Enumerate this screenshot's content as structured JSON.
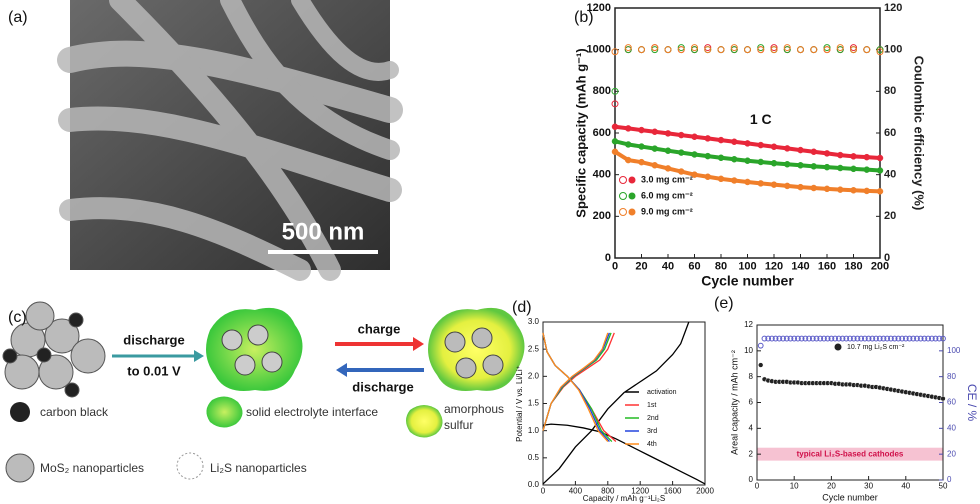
{
  "figure_a": {
    "panel": "(a)",
    "scale_bar": "500 nm"
  },
  "diagram_c": {
    "panel": "(c)",
    "arrow_1": [
      "discharge",
      "to 0.01 V"
    ],
    "arrow_2": "charge",
    "arrow_3": "discharge",
    "legend": [
      "carbon black",
      "solid electrolyte interface",
      "MoS₂ nanoparticles",
      "Li₂S nanoparticles"
    ],
    "legend_sulfur": [
      "amorphous",
      "sulfur"
    ]
  },
  "chart_data": [
    {
      "type": "line",
      "panel": "(b)",
      "xlabel": "Cycle number",
      "ylabel": "Specific capacity (mAh g⁻¹)",
      "y2label": "Coulombic efficiency (%)",
      "x": [
        0,
        10,
        20,
        30,
        40,
        50,
        60,
        70,
        80,
        90,
        100,
        110,
        120,
        130,
        140,
        150,
        160,
        170,
        180,
        190,
        200
      ],
      "xlim": [
        0,
        200
      ],
      "xticks": [
        0,
        20,
        40,
        60,
        80,
        100,
        120,
        140,
        160,
        180,
        200
      ],
      "ylim": [
        0,
        1200
      ],
      "yticks": [
        0,
        200,
        400,
        600,
        800,
        1000,
        1200
      ],
      "y2lim": [
        0,
        120
      ],
      "y2ticks": [
        0,
        20,
        40,
        60,
        80,
        100,
        120
      ],
      "legend": "lower left",
      "annotations": [
        "1 C"
      ],
      "series": [
        {
          "name": "3.0 mg cm⁻²",
          "color": "#e8273a",
          "marker": "filled",
          "values": [
            630,
            622,
            614,
            606,
            598,
            590,
            582,
            574,
            566,
            558,
            550,
            542,
            534,
            526,
            518,
            510,
            502,
            494,
            488,
            484,
            480
          ]
        },
        {
          "name": "6.0 mg cm⁻²",
          "color": "#2aa52a",
          "marker": "filled",
          "values": [
            560,
            545,
            535,
            525,
            515,
            506,
            497,
            489,
            481,
            474,
            467,
            461,
            455,
            450,
            445,
            440,
            436,
            432,
            428,
            424,
            420
          ]
        },
        {
          "name": "9.0 mg cm⁻²",
          "color": "#f07f2a",
          "marker": "filled",
          "values": [
            510,
            470,
            460,
            445,
            430,
            415,
            400,
            390,
            380,
            372,
            365,
            358,
            352,
            346,
            340,
            336,
            332,
            328,
            325,
            322,
            320
          ]
        },
        {
          "color": "#e8273a",
          "marker": "open",
          "line": false,
          "axis": "y2",
          "values": [
            74,
            100,
            100,
            101,
            100,
            100,
            100,
            101,
            100,
            100,
            100,
            100,
            101,
            100,
            100,
            100,
            100,
            100,
            101,
            100,
            100
          ]
        },
        {
          "color": "#2aa52a",
          "marker": "open",
          "line": false,
          "axis": "y2",
          "values": [
            80,
            100,
            100,
            100,
            100,
            101,
            100,
            100,
            100,
            100,
            100,
            101,
            100,
            100,
            100,
            100,
            101,
            100,
            100,
            100,
            100
          ]
        },
        {
          "color": "#f07f2a",
          "marker": "open",
          "line": false,
          "axis": "y2",
          "values": [
            99,
            101,
            100,
            101,
            100,
            100,
            101,
            100,
            100,
            101,
            100,
            100,
            100,
            101,
            100,
            100,
            100,
            101,
            100,
            100,
            99
          ]
        }
      ]
    },
    {
      "type": "line",
      "panel": "(d)",
      "xlabel": "Capacity / mAh g⁻¹Li₂S",
      "ylabel": "Potential / V vs. Li/Li⁺",
      "xlim": [
        0,
        2000
      ],
      "xticks": [
        0,
        400,
        800,
        1200,
        1600,
        2000
      ],
      "ylim": [
        0,
        3
      ],
      "yticks": [
        {
          "value": 0,
          "label": "0.0"
        },
        {
          "value": 0.5,
          "label": "0.5"
        },
        {
          "value": 1,
          "label": "1.0"
        },
        {
          "value": 1.5,
          "label": "1.5"
        },
        {
          "value": 2,
          "label": "2.0"
        },
        {
          "value": 2.5,
          "label": "2.5"
        },
        {
          "value": 3,
          "label": "3.0"
        }
      ],
      "legend": "center right",
      "series": [
        {
          "name": "activation",
          "color": "#000000",
          "x": [
            0,
            100,
            300,
            500,
            700,
            900,
            1100,
            1300,
            1500,
            1700,
            1900,
            2000,
            null,
            0,
            200,
            400,
            600,
            800,
            1000,
            1200,
            1400,
            1600,
            1700,
            1750,
            1800
          ],
          "values": [
            1.1,
            1.12,
            1.1,
            1.05,
            0.98,
            0.85,
            0.7,
            0.55,
            0.4,
            0.25,
            0.1,
            0.02,
            null,
            0.02,
            0.3,
            0.7,
            1.0,
            1.4,
            1.7,
            1.9,
            2.1,
            2.4,
            2.6,
            2.8,
            3.0
          ]
        },
        {
          "name": "1st",
          "color": "#ff3333",
          "x": [
            0,
            50,
            150,
            300,
            450,
            600,
            750,
            900,
            null,
            0,
            100,
            250,
            400,
            550,
            700,
            800,
            880
          ],
          "values": [
            2.8,
            2.45,
            2.2,
            2.0,
            1.75,
            1.4,
            1.0,
            0.8,
            null,
            1.0,
            1.5,
            1.8,
            2.0,
            2.15,
            2.3,
            2.5,
            2.8
          ]
        },
        {
          "name": "2nd",
          "color": "#22bb22",
          "x": [
            0,
            50,
            150,
            300,
            450,
            600,
            720,
            850,
            null,
            0,
            100,
            240,
            380,
            520,
            660,
            760,
            840
          ],
          "values": [
            2.8,
            2.45,
            2.2,
            2.0,
            1.75,
            1.4,
            1.0,
            0.8,
            null,
            1.0,
            1.5,
            1.8,
            2.0,
            2.15,
            2.3,
            2.5,
            2.8
          ]
        },
        {
          "name": "3rd",
          "color": "#2244dd",
          "x": [
            0,
            50,
            150,
            300,
            450,
            580,
            700,
            820,
            null,
            0,
            100,
            230,
            370,
            510,
            640,
            740,
            820
          ],
          "values": [
            2.8,
            2.45,
            2.2,
            2.0,
            1.75,
            1.4,
            1.0,
            0.8,
            null,
            1.0,
            1.5,
            1.8,
            2.0,
            2.15,
            2.3,
            2.5,
            2.8
          ]
        },
        {
          "name": "4th",
          "color": "#ff8c1a",
          "x": [
            0,
            50,
            150,
            300,
            440,
            560,
            680,
            800,
            null,
            0,
            100,
            220,
            360,
            500,
            630,
            730,
            800
          ],
          "values": [
            2.8,
            2.45,
            2.2,
            2.0,
            1.75,
            1.4,
            1.0,
            0.8,
            null,
            1.0,
            1.5,
            1.8,
            2.0,
            2.15,
            2.3,
            2.5,
            2.8
          ]
        }
      ]
    },
    {
      "type": "scatter",
      "panel": "(e)",
      "xlabel": "Cycle number",
      "ylabel": "Areal capacity / mAh cm⁻²",
      "y2label": "CE / %",
      "x": [
        1,
        2,
        3,
        4,
        5,
        6,
        7,
        8,
        9,
        10,
        11,
        12,
        13,
        14,
        15,
        16,
        17,
        18,
        19,
        20,
        21,
        22,
        23,
        24,
        25,
        26,
        27,
        28,
        29,
        30,
        31,
        32,
        33,
        34,
        35,
        36,
        37,
        38,
        39,
        40,
        41,
        42,
        43,
        44,
        45,
        46,
        47,
        48,
        49,
        50
      ],
      "xlim": [
        0,
        50
      ],
      "xticks": [
        0,
        10,
        20,
        30,
        40,
        50
      ],
      "ylim": [
        0,
        12
      ],
      "yticks": [
        0,
        2,
        4,
        6,
        8,
        10,
        12
      ],
      "y2lim": [
        0,
        120
      ],
      "y2ticks": [
        0,
        20,
        40,
        60,
        80,
        100
      ],
      "y2_color": "#4b4bb0",
      "legend": "upper right",
      "band": {
        "range": [
          1.5,
          2.5
        ],
        "label": "typical Li₂S-based cathodes",
        "color": "#f6c2d2"
      },
      "series": [
        {
          "name": "10.7 mg Li₂S cm⁻²",
          "color": "#222222",
          "marker": "filled",
          "values": [
            8.9,
            7.8,
            7.7,
            7.65,
            7.6,
            7.6,
            7.6,
            7.6,
            7.55,
            7.55,
            7.55,
            7.5,
            7.5,
            7.5,
            7.5,
            7.5,
            7.5,
            7.5,
            7.5,
            7.5,
            7.45,
            7.45,
            7.4,
            7.4,
            7.4,
            7.35,
            7.35,
            7.3,
            7.3,
            7.25,
            7.2,
            7.2,
            7.15,
            7.1,
            7.05,
            7.0,
            6.95,
            6.9,
            6.85,
            6.8,
            6.75,
            6.7,
            6.65,
            6.6,
            6.55,
            6.5,
            6.45,
            6.4,
            6.35,
            6.3
          ]
        },
        {
          "color": "#5b5bc8",
          "marker": "open",
          "axis": "y2",
          "values": [
            104,
            109.5,
            109.5,
            109.5,
            109.5,
            109.5,
            109.5,
            109.5,
            109.5,
            109.5,
            109.5,
            109.5,
            109.5,
            109.5,
            109.5,
            109.5,
            109.5,
            109.5,
            109.5,
            109.5,
            109.5,
            109.5,
            109.5,
            109.5,
            109.5,
            109.5,
            109.5,
            109.5,
            109.5,
            109.5,
            109.5,
            109.5,
            109.5,
            109.5,
            109.5,
            109.5,
            109.5,
            109.5,
            109.5,
            109.5,
            109.5,
            109.5,
            109.5,
            109.5,
            109.5,
            109.5,
            109.5,
            109.5,
            109.5,
            109.5
          ]
        }
      ]
    }
  ]
}
